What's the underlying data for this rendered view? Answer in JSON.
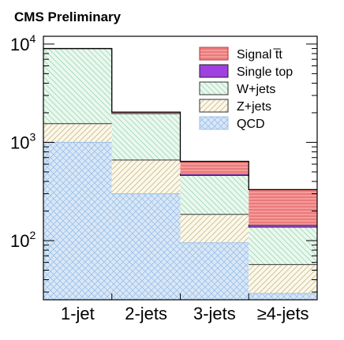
{
  "chart_data": {
    "type": "bar",
    "stacked": true,
    "title": "CMS Preliminary",
    "xlabel": "",
    "ylabel": "",
    "yscale": "log",
    "ylim": [
      25,
      12000
    ],
    "yticks": [
      {
        "value": 100,
        "base": "10",
        "exp": "2"
      },
      {
        "value": 1000,
        "base": "10",
        "exp": "3"
      },
      {
        "value": 10000,
        "base": "10",
        "exp": "4"
      }
    ],
    "categories": [
      "1-jet",
      "2-jets",
      "3-jets",
      "≥4-jets"
    ],
    "series": [
      {
        "name": "QCD",
        "color": "#bcd8f2",
        "pattern": "crosshatch",
        "values": [
          1000,
          300,
          95,
          29
        ]
      },
      {
        "name": "Z+jets",
        "color": "#d8cc98",
        "pattern": "diag-right",
        "values": [
          550,
          360,
          90,
          28
        ]
      },
      {
        "name": "W+jets",
        "color": "#a8e0b8",
        "pattern": "diag-left",
        "values": [
          7450,
          1300,
          275,
          80
        ]
      },
      {
        "name": "Single top",
        "color": "#a040e0",
        "pattern": "solid",
        "values": [
          0,
          20,
          15,
          8
        ]
      },
      {
        "name": "Signal t̅t",
        "color": "#f07a7a",
        "pattern": "hlines",
        "values": [
          0,
          50,
          165,
          185
        ]
      }
    ],
    "legend": {
      "position": "top-right",
      "order": [
        "Signal t̅t",
        "Single top",
        "W+jets",
        "Z+jets",
        "QCD"
      ]
    },
    "grid": false
  }
}
